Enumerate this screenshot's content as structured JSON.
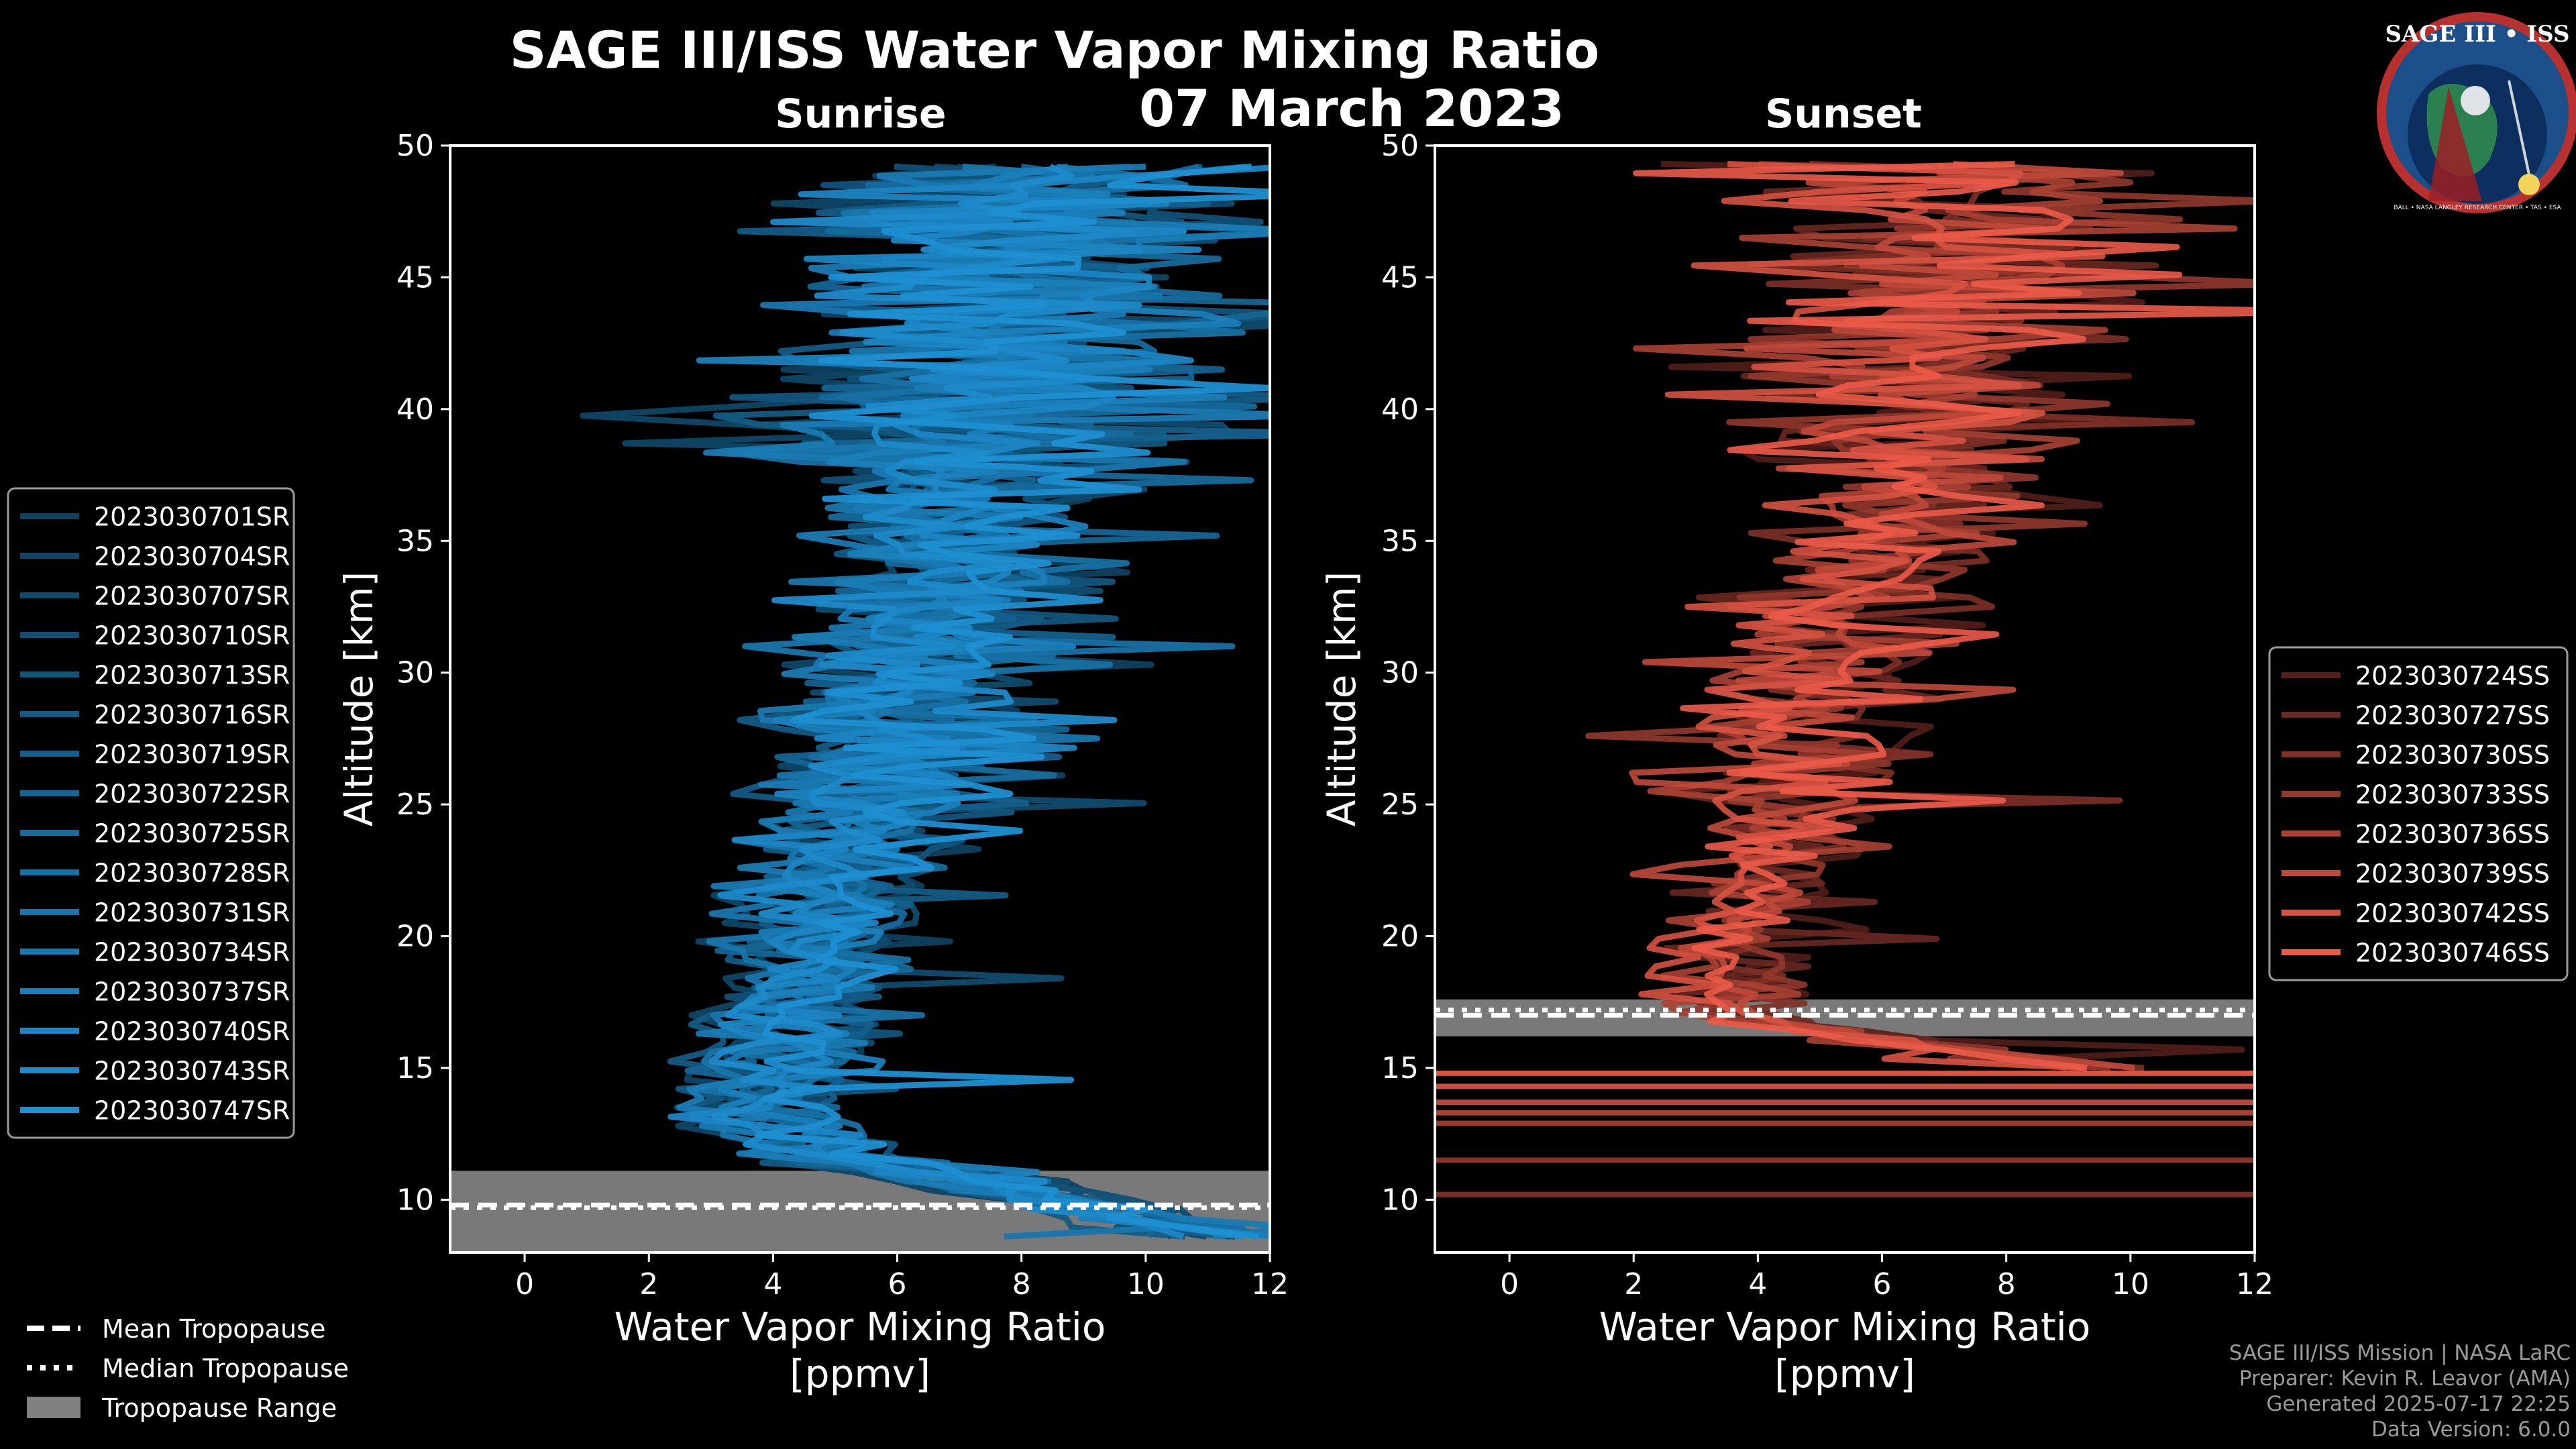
{
  "title": "SAGE III/ISS Water Vapor Mixing Ratio",
  "date": "07 March 2023",
  "logo": {
    "text": "SAGE III • ISS",
    "ring_text": "BALL • NASA LANGLEY RESEARCH CENTER • TAS • ESA"
  },
  "footer": {
    "line1": "SAGE III/ISS Mission | NASA LaRC",
    "line2": "Preparer: Kevin R. Leavor (AMA)",
    "line3": "Generated 2025-07-17 22:25",
    "line4": "Data Version: 6.0.0"
  },
  "tropopause_legend": [
    "Mean Tropopause",
    "Median Tropopause",
    "Tropopause Range"
  ],
  "colors": {
    "sunrise": "#1e8fd2",
    "sunset": "#ec5a48",
    "tropo_range": "#808080",
    "background": "#000000"
  },
  "chart_data": [
    {
      "type": "line",
      "title": "Sunrise",
      "xlabel": "Water Vapor Mixing Ratio\n[ppmv]",
      "ylabel": "Altitude [km]",
      "xlim": [
        -1.2,
        12
      ],
      "ylim": [
        8,
        50
      ],
      "xticks": [
        0,
        2,
        4,
        6,
        8,
        10,
        12
      ],
      "yticks": [
        10,
        15,
        20,
        25,
        30,
        35,
        40,
        45,
        50
      ],
      "tropopause": {
        "mean": 9.8,
        "median": 9.7,
        "range": [
          8,
          11.1
        ]
      },
      "series_names": [
        "2023030701SR",
        "2023030704SR",
        "2023030707SR",
        "2023030710SR",
        "2023030713SR",
        "2023030716SR",
        "2023030719SR",
        "2023030722SR",
        "2023030725SR",
        "2023030728SR",
        "2023030731SR",
        "2023030734SR",
        "2023030737SR",
        "2023030740SR",
        "2023030743SR",
        "2023030747SR"
      ],
      "mean_profile": {
        "alt": [
          8.6,
          10,
          11,
          11.5,
          12,
          13,
          14,
          15,
          17,
          19,
          21,
          23,
          25,
          27,
          29,
          31,
          33,
          35,
          37,
          39,
          41,
          43,
          45,
          47,
          49.5
        ],
        "x": [
          11,
          8.6,
          6.5,
          5.3,
          4.6,
          3.9,
          3.8,
          4.1,
          4.3,
          4.6,
          4.9,
          5.3,
          5.6,
          5.9,
          6.1,
          6.3,
          6.6,
          6.8,
          7.0,
          7.2,
          7.4,
          7.6,
          7.8,
          8.0,
          8.2
        ]
      }
    },
    {
      "type": "line",
      "title": "Sunset",
      "xlabel": "Water Vapor Mixing Ratio\n[ppmv]",
      "ylabel": "Altitude [km]",
      "xlim": [
        -1.2,
        12
      ],
      "ylim": [
        8,
        50
      ],
      "xticks": [
        0,
        2,
        4,
        6,
        8,
        10,
        12
      ],
      "yticks": [
        10,
        15,
        20,
        25,
        30,
        35,
        40,
        45,
        50
      ],
      "tropopause": {
        "mean": 17.0,
        "median": 17.2,
        "range": [
          16.2,
          17.6
        ]
      },
      "series_names": [
        "2023030724SS",
        "2023030727SS",
        "2023030730SS",
        "2023030733SS",
        "2023030736SS",
        "2023030739SS",
        "2023030742SS",
        "2023030746SS"
      ],
      "mean_profile": {
        "alt": [
          15,
          16,
          17,
          18,
          19,
          20,
          21,
          22,
          23,
          25,
          27,
          29,
          31,
          33,
          35,
          37,
          39,
          41,
          43,
          45,
          47,
          49.5
        ],
        "x": [
          9.5,
          6.0,
          3.5,
          3.4,
          3.6,
          3.8,
          3.9,
          4.0,
          4.2,
          4.4,
          4.6,
          4.9,
          5.3,
          5.7,
          6.1,
          6.5,
          6.7,
          6.9,
          7.0,
          7.1,
          7.2,
          7.3
        ]
      }
    }
  ]
}
